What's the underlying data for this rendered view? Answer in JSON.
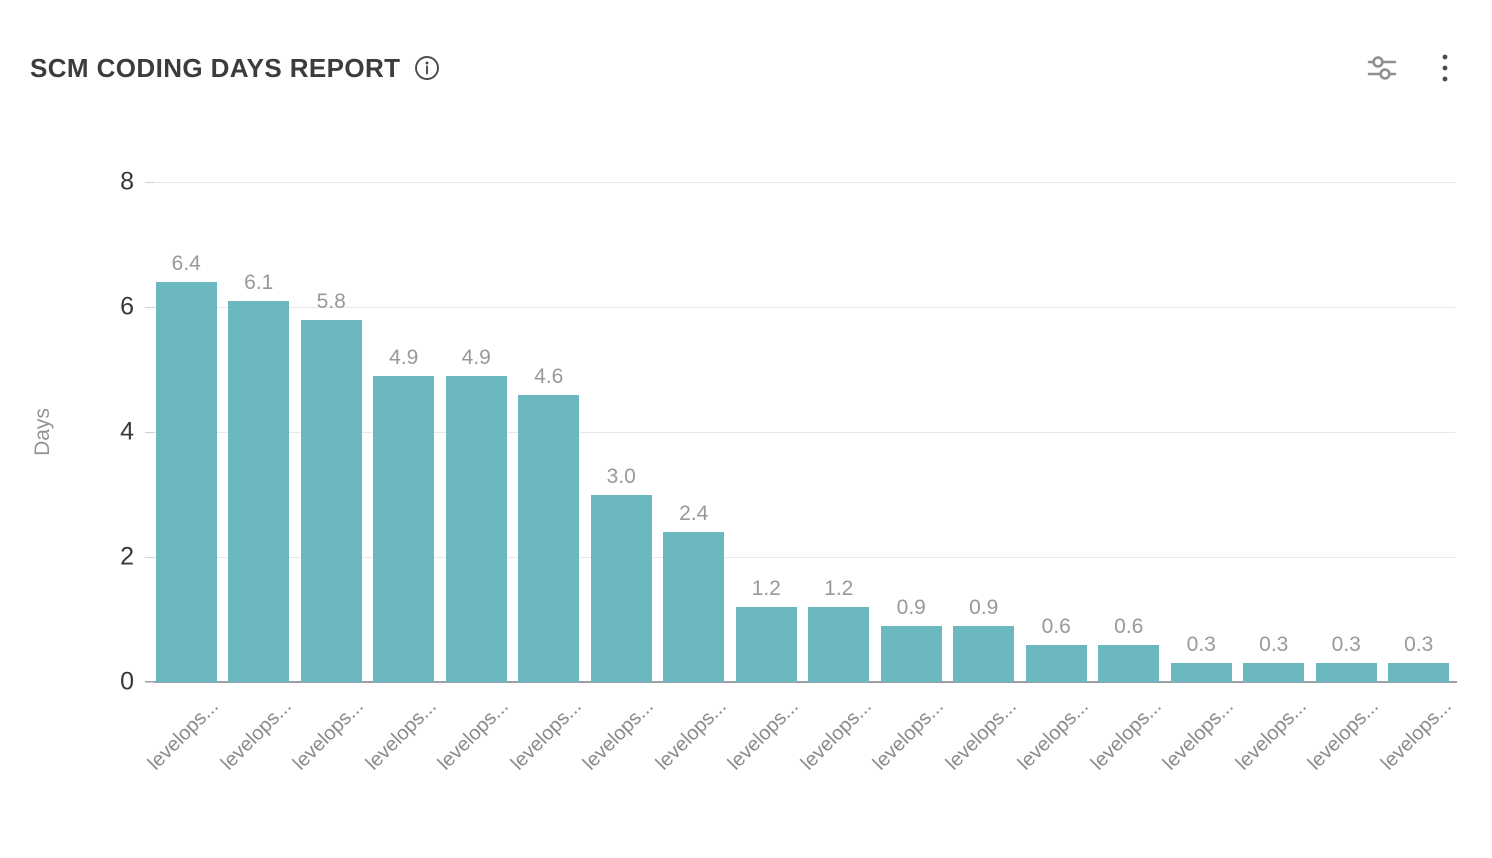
{
  "header": {
    "title": "SCM CODING DAYS REPORT",
    "icons": {
      "info": "circled-letter-i",
      "filter": "horizontal-sliders",
      "menu": "vertical-three-dots"
    }
  },
  "chart_data": {
    "type": "bar",
    "title": "SCM CODING DAYS REPORT",
    "categories": [
      "levelops...",
      "levelops...",
      "levelops...",
      "levelops...",
      "levelops...",
      "levelops...",
      "levelops...",
      "levelops...",
      "levelops...",
      "levelops...",
      "levelops...",
      "levelops...",
      "levelops...",
      "levelops...",
      "levelops...",
      "levelops...",
      "levelops...",
      "levelops..."
    ],
    "values": [
      6.4,
      6.1,
      5.8,
      4.9,
      4.9,
      4.6,
      3.0,
      2.4,
      1.2,
      1.2,
      0.9,
      0.9,
      0.6,
      0.6,
      0.3,
      0.3,
      0.3,
      0.3
    ],
    "bar_labels": [
      "6.4",
      "6.1",
      "5.8",
      "4.9",
      "4.9",
      "4.6",
      "3.0",
      "2.4",
      "1.2",
      "1.2",
      "0.9",
      "0.9",
      "0.6",
      "0.6",
      "0.3",
      "0.3",
      "0.3",
      "0.3"
    ],
    "xlabel": "",
    "ylabel": "Days",
    "ylim": [
      0,
      8
    ],
    "yticks": [
      0,
      2,
      4,
      6,
      8
    ],
    "grid": true,
    "legend": false
  },
  "colors": {
    "bar": "#6cb8c1",
    "value_label": "#999999",
    "axis_text": "#383838",
    "muted_text": "#8a8a8a",
    "gridline": "#e9e9e9",
    "axis_line": "#9aa0a6",
    "icon": "#8f8f8f",
    "icon_dark": "#4a4a4a"
  }
}
